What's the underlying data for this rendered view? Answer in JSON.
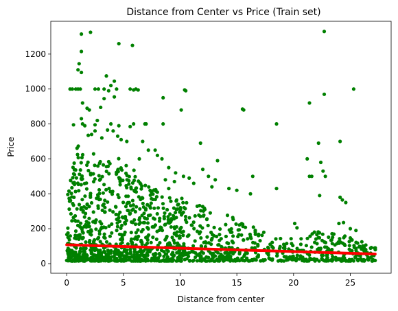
{
  "chart_data": {
    "type": "scatter",
    "title": "Distance from Center vs Price (Train set)",
    "xlabel": "Distance from center",
    "ylabel": "Price",
    "xlim": [
      -1.4,
      28.6
    ],
    "ylim": [
      -55,
      1388
    ],
    "xticks": [
      0,
      5,
      10,
      15,
      20,
      25
    ],
    "yticks": [
      0,
      200,
      400,
      600,
      800,
      1000,
      1200
    ],
    "grid": false,
    "scatter_color": "#008000",
    "trend_color": "#ff0000",
    "series": [
      {
        "kind": "points",
        "points": [
          [
            0.3,
            1000
          ],
          [
            0.5,
            1000
          ],
          [
            0.8,
            1000
          ],
          [
            1.0,
            1000
          ],
          [
            1.2,
            1000
          ],
          [
            2.8,
            1000
          ],
          [
            3.3,
            1000
          ],
          [
            3.7,
            990
          ],
          [
            4.4,
            1000
          ],
          [
            5.6,
            1000
          ],
          [
            5.9,
            995
          ],
          [
            6.1,
            1000
          ],
          [
            6.3,
            995
          ],
          [
            10.4,
            995
          ],
          [
            10.5,
            990
          ],
          [
            25.3,
            1000
          ],
          [
            1.3,
            1315
          ],
          [
            2.1,
            1325
          ],
          [
            4.6,
            1260
          ],
          [
            5.8,
            1250
          ],
          [
            22.7,
            1330
          ],
          [
            1.3,
            1215
          ],
          [
            1.1,
            1145
          ],
          [
            1.0,
            1110
          ],
          [
            1.3,
            1095
          ],
          [
            3.5,
            1075
          ],
          [
            4.2,
            1045
          ],
          [
            3.9,
            1020
          ],
          [
            2.5,
            1000
          ],
          [
            4.2,
            955
          ],
          [
            3.3,
            945
          ],
          [
            8.5,
            950
          ],
          [
            3.0,
            895
          ],
          [
            1.8,
            890
          ],
          [
            2.0,
            880
          ],
          [
            10.1,
            880
          ],
          [
            1.4,
            920
          ],
          [
            21.4,
            920
          ],
          [
            22.7,
            970
          ],
          [
            15.5,
            885
          ],
          [
            15.6,
            880
          ],
          [
            18.5,
            800
          ],
          [
            0.6,
            795
          ],
          [
            1.4,
            800
          ],
          [
            1.6,
            790
          ],
          [
            2.5,
            795
          ],
          [
            3.9,
            800
          ],
          [
            4.6,
            790
          ],
          [
            5.9,
            800
          ],
          [
            6.9,
            800
          ],
          [
            7.0,
            800
          ],
          [
            8.5,
            800
          ],
          [
            1.3,
            830
          ],
          [
            2.7,
            820
          ],
          [
            3.6,
            765
          ],
          [
            5.6,
            785
          ],
          [
            4.1,
            760
          ],
          [
            2.2,
            740
          ],
          [
            1.9,
            735
          ],
          [
            2.5,
            760
          ],
          [
            3.1,
            720
          ],
          [
            4.5,
            730
          ],
          [
            11.8,
            690
          ],
          [
            21.2,
            600
          ],
          [
            22.2,
            690
          ],
          [
            24.1,
            700
          ],
          [
            22.4,
            580
          ],
          [
            22.6,
            530
          ],
          [
            22.8,
            500
          ],
          [
            13.3,
            590
          ],
          [
            16.4,
            500
          ],
          [
            24.1,
            380
          ],
          [
            24.3,
            365
          ],
          [
            24.6,
            350
          ],
          [
            22.3,
            390
          ],
          [
            21.4,
            500
          ],
          [
            21.6,
            500
          ],
          [
            18.5,
            430
          ],
          [
            12.5,
            500
          ],
          [
            13.1,
            480
          ],
          [
            12.0,
            540
          ],
          [
            24.0,
            230
          ],
          [
            24.4,
            235
          ],
          [
            25.0,
            200
          ],
          [
            25.5,
            190
          ],
          [
            27.2,
            90
          ],
          [
            27.2,
            80
          ],
          [
            26.2,
            75
          ],
          [
            26.8,
            60
          ],
          [
            20.1,
            230
          ],
          [
            20.3,
            205
          ],
          [
            9.5,
            470
          ],
          [
            9.0,
            430
          ],
          [
            8.7,
            480
          ],
          [
            10.3,
            500
          ],
          [
            10.8,
            490
          ],
          [
            11.2,
            460
          ],
          [
            12.8,
            440
          ],
          [
            14.3,
            430
          ],
          [
            15.0,
            420
          ],
          [
            16.2,
            400
          ],
          [
            7.8,
            650
          ],
          [
            8.0,
            620
          ],
          [
            8.4,
            600
          ],
          [
            7.2,
            650
          ],
          [
            6.7,
            700
          ],
          [
            5.3,
            700
          ],
          [
            4.8,
            710
          ],
          [
            6.4,
            600
          ],
          [
            9.0,
            550
          ],
          [
            9.6,
            520
          ]
        ]
      },
      {
        "kind": "dense_band",
        "band": [
          [
            0.0,
            380
          ],
          [
            1.0,
            690
          ],
          [
            2.0,
            650
          ],
          [
            3.0,
            600
          ],
          [
            4.0,
            620
          ],
          [
            5.0,
            610
          ],
          [
            6.0,
            560
          ],
          [
            7.0,
            470
          ],
          [
            8.0,
            420
          ],
          [
            9.0,
            400
          ],
          [
            10.0,
            380
          ],
          [
            11.0,
            340
          ],
          [
            12.0,
            330
          ],
          [
            13.0,
            300
          ],
          [
            14.0,
            290
          ],
          [
            15.0,
            280
          ],
          [
            16.0,
            230
          ],
          [
            17.0,
            200
          ],
          [
            18.0,
            190
          ],
          [
            19.0,
            160
          ],
          [
            20.0,
            150
          ],
          [
            21.0,
            160
          ],
          [
            22.0,
            190
          ],
          [
            23.0,
            180
          ],
          [
            24.0,
            170
          ],
          [
            25.0,
            150
          ],
          [
            26.0,
            130
          ],
          [
            27.0,
            90
          ]
        ],
        "floor": 15
      },
      {
        "kind": "trend",
        "points": [
          [
            0.0,
            108
          ],
          [
            27.2,
            55
          ]
        ]
      }
    ]
  }
}
